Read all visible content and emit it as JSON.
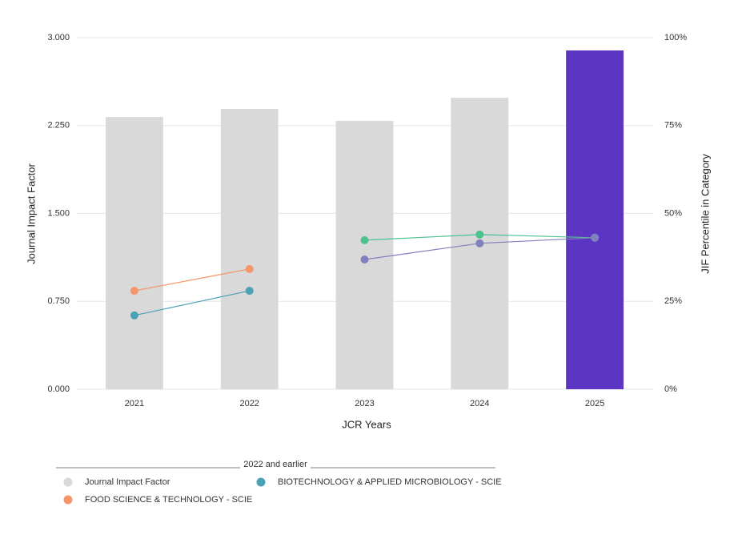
{
  "chart_data": {
    "type": "bar",
    "x_label": "JCR Years",
    "y_label": "Journal Impact Factor",
    "y2_label": "JIF Percentile in Category",
    "categories": [
      "2021",
      "2022",
      "2023",
      "2024",
      "2025"
    ],
    "series": [
      {
        "name": "Journal Impact Factor",
        "type": "bar",
        "color": "#d9d9d9",
        "colors": [
          "#d9d9d9",
          "#d9d9d9",
          "#d9d9d9",
          "#d9d9d9",
          "#5c35c2"
        ],
        "values": [
          2.323,
          2.392,
          2.289,
          2.487,
          2.891
        ]
      },
      {
        "name": "FOOD SCIENCE & TECHNOLOGY - SCIE",
        "type": "line",
        "axis": "y2",
        "color": "#f4956a",
        "values": [
          28.0,
          34.2,
          null,
          null,
          null
        ]
      },
      {
        "name": "BIOTECHNOLOGY & APPLIED MICROBIOLOGY - SCIE",
        "type": "line",
        "axis": "y2",
        "color": "#4aa3b5",
        "values": [
          21.0,
          28.0,
          null,
          null,
          null
        ]
      },
      {
        "type": "line",
        "axis": "y2",
        "color": "#4cc28f",
        "values": [
          null,
          null,
          42.4,
          44.0,
          43.1
        ]
      },
      {
        "type": "line",
        "axis": "y2",
        "color": "#8181c0",
        "values": [
          null,
          null,
          36.9,
          41.5,
          43.1
        ]
      }
    ],
    "ylim": [
      0,
      3
    ],
    "yticks": [
      {
        "value": 0,
        "label": "0.000"
      },
      {
        "value": 0.75,
        "label": "0.750"
      },
      {
        "value": 1.5,
        "label": "1.500"
      },
      {
        "value": 2.25,
        "label": "2.250"
      },
      {
        "value": 3,
        "label": "3.000"
      }
    ],
    "y2lim": [
      0,
      100
    ],
    "y2ticks": [
      {
        "value": 0,
        "label": "0%"
      },
      {
        "value": 25,
        "label": "25%"
      },
      {
        "value": 50,
        "label": "50%"
      },
      {
        "value": 75,
        "label": "75%"
      },
      {
        "value": 100,
        "label": "100%"
      }
    ],
    "grid": true,
    "legend_title": "2022 and earlier"
  }
}
